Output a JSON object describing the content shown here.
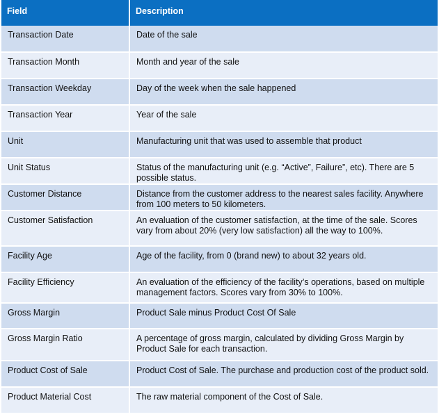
{
  "table": {
    "headers": [
      "Field",
      "Description"
    ],
    "rows": [
      {
        "field": "Transaction Date",
        "description": "Date of the sale"
      },
      {
        "field": "Transaction Month",
        "description": "Month and year of the sale"
      },
      {
        "field": "Transaction Weekday",
        "description": "Day of the week when the sale happened"
      },
      {
        "field": "Transaction Year",
        "description": "Year of the sale"
      },
      {
        "field": "Unit",
        "description": "Manufacturing unit that was used to assemble that product"
      },
      {
        "field": "Unit Status",
        "description": "Status of the manufacturing unit (e.g. “Active”, Failure”, etc).  There are 5 possible status."
      },
      {
        "field": "Customer Distance",
        "description": "Distance from the customer address to the nearest sales facility. Anywhere from 100 meters to 50 kilometers."
      },
      {
        "field": "Customer Satisfaction",
        "description": "An evaluation of the customer satisfaction, at the time of the sale. Scores vary from about 20% (very low satisfaction) all the way to 100%."
      },
      {
        "field": "Facility Age",
        "description": "Age of the facility, from 0 (brand new) to about 32 years old."
      },
      {
        "field": "Facility Efficiency",
        "description": "An evaluation of the efficiency of the facility’s operations, based on multiple management factors.  Scores vary from 30% to 100%."
      },
      {
        "field": "Gross Margin",
        "description": "Product Sale minus Product Cost Of Sale"
      },
      {
        "field": "Gross Margin Ratio",
        "description": "A percentage of gross margin, calculated by dividing Gross Margin by Product Sale for each transaction."
      },
      {
        "field": "Product Cost of Sale",
        "description": "Product Cost of Sale. The purchase and production cost of the product sold."
      },
      {
        "field": "Product Material Cost",
        "description": "The raw material component of the Cost of Sale."
      }
    ]
  },
  "colors": {
    "header_bg": "#0b6fc2",
    "row_dark": "#cfdcef",
    "row_light": "#e8eef8"
  }
}
